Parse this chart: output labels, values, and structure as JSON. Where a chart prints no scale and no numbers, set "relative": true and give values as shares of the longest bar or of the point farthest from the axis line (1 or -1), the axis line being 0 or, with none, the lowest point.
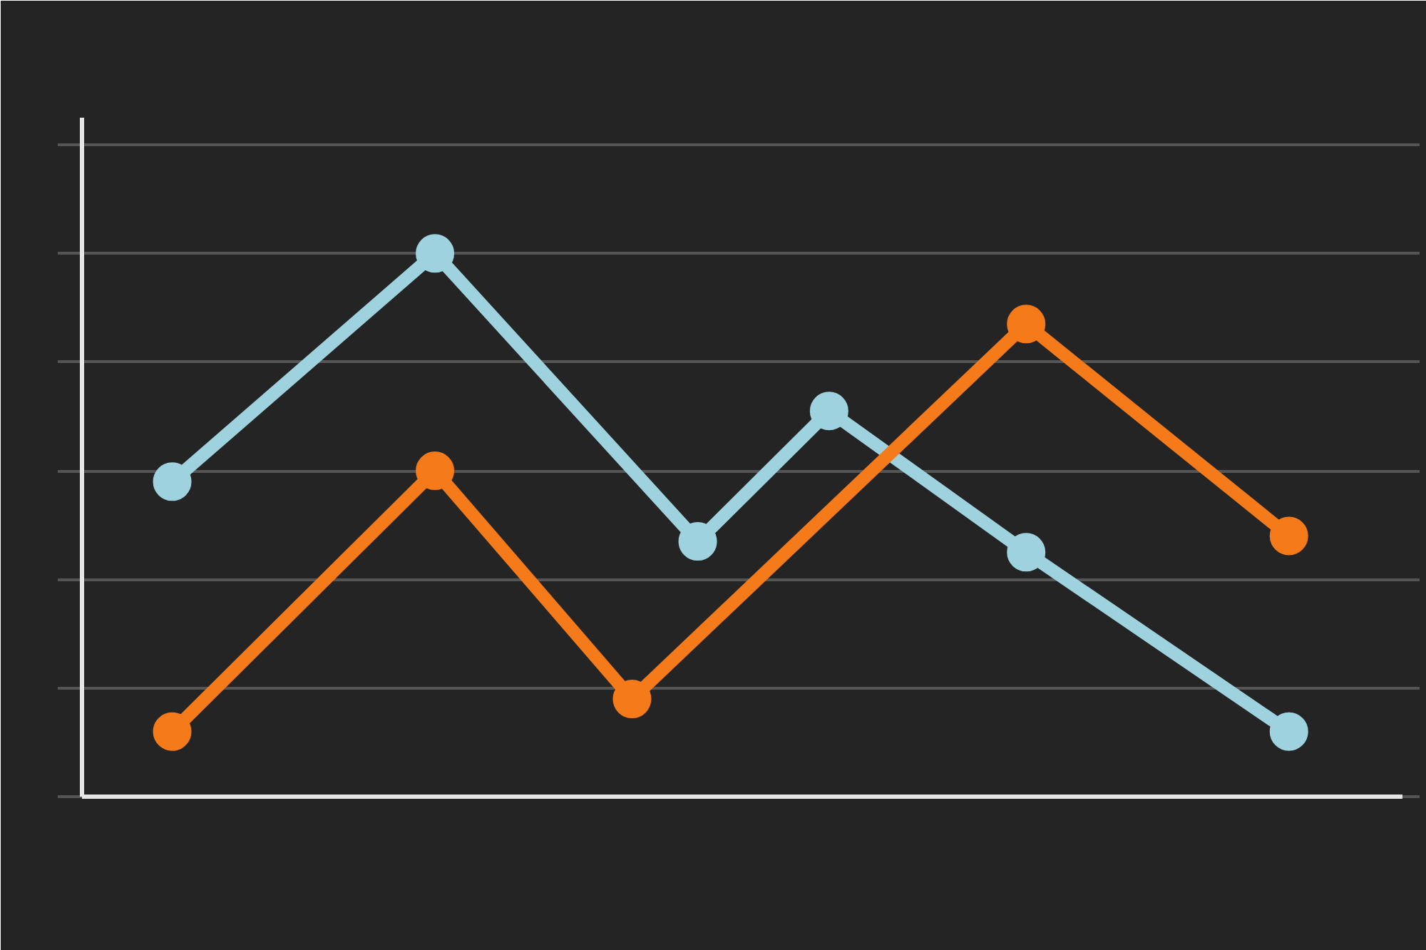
{
  "chart_data": {
    "type": "line",
    "relative": true,
    "categories": [
      null,
      null,
      null,
      null,
      null,
      null,
      null,
      null,
      null,
      null,
      null,
      null,
      null,
      null,
      null,
      null,
      null,
      null
    ],
    "series": [
      {
        "color": "#9fd2df",
        "values": [
          0.58,
          null,
          null,
          null,
          1,
          null,
          null,
          null,
          0.47,
          null,
          0.71,
          null,
          null,
          0.45,
          null,
          null,
          null,
          0.12
        ]
      },
      {
        "color": "#f47a1a",
        "values": [
          0.12,
          null,
          null,
          null,
          0.6,
          null,
          null,
          0.18,
          null,
          null,
          null,
          null,
          null,
          0.87,
          null,
          null,
          null,
          0.48
        ]
      }
    ],
    "marker": "circle",
    "line_style": "solid",
    "grid": "y"
  }
}
